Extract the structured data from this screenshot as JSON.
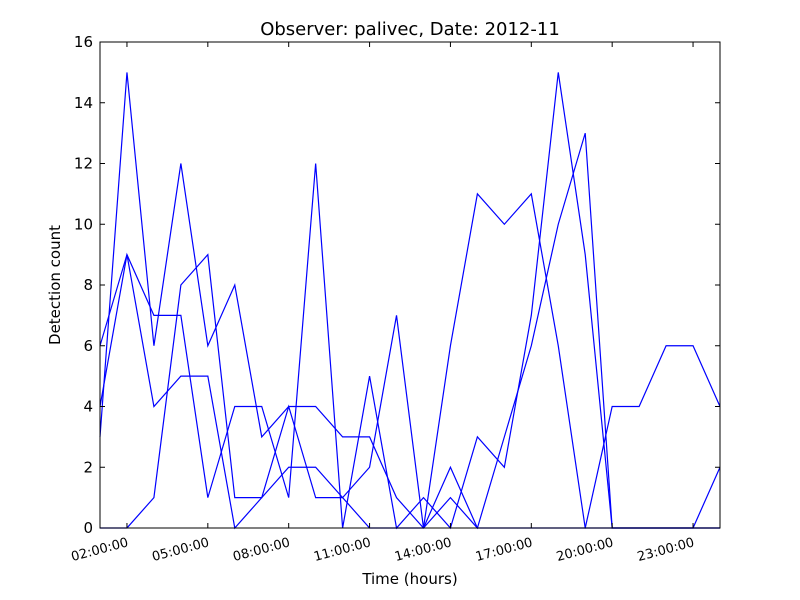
{
  "chart_data": {
    "type": "line",
    "title": "Observer: palivec, Date: 2012-11",
    "xlabel": "Time (hours)",
    "ylabel": "Detection count",
    "xlim": [
      1.0,
      24.0
    ],
    "ylim": [
      0,
      16
    ],
    "y_ticks": [
      "0",
      "2",
      "4",
      "6",
      "8",
      "10",
      "12",
      "14",
      "16"
    ],
    "x_ticks": [
      {
        "hour": 2,
        "label": "02:00:00"
      },
      {
        "hour": 5,
        "label": "05:00:00"
      },
      {
        "hour": 8,
        "label": "08:00:00"
      },
      {
        "hour": 11,
        "label": "11:00:00"
      },
      {
        "hour": 14,
        "label": "14:00:00"
      },
      {
        "hour": 17,
        "label": "17:00:00"
      },
      {
        "hour": 20,
        "label": "20:00:00"
      },
      {
        "hour": 23,
        "label": "23:00:00"
      }
    ],
    "x": [
      1,
      2,
      3,
      4,
      5,
      6,
      7,
      8,
      9,
      10,
      11,
      12,
      13,
      14,
      15,
      16,
      17,
      18,
      19,
      20,
      21,
      22,
      23,
      24
    ],
    "series": [
      {
        "values": [
          6,
          9,
          4,
          5,
          5,
          0,
          1,
          2,
          2,
          1,
          2,
          7,
          0,
          6,
          11,
          10,
          11,
          6,
          0,
          0,
          0,
          0,
          0,
          0
        ]
      },
      {
        "values": [
          3,
          15,
          6,
          12,
          6,
          8,
          3,
          4,
          4,
          3,
          3,
          1,
          0,
          1,
          0,
          3,
          6,
          10,
          13,
          0,
          0,
          0,
          0,
          0
        ]
      },
      {
        "values": [
          4,
          9,
          7,
          7,
          1,
          4,
          4,
          1,
          12,
          0,
          5,
          0,
          1,
          0,
          3,
          2,
          7,
          15,
          9,
          0,
          0,
          0,
          0,
          2
        ]
      },
      {
        "values": [
          0,
          0,
          1,
          8,
          9,
          1,
          1,
          4,
          1,
          1,
          0,
          0,
          0,
          2,
          0,
          0,
          0,
          0,
          0,
          4,
          4,
          6,
          6,
          4
        ]
      }
    ],
    "line_color": "#0000ff",
    "grid": false
  }
}
